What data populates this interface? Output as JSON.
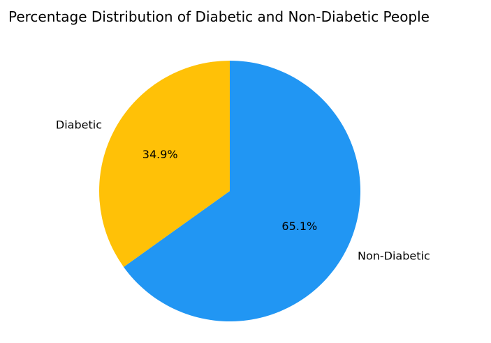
{
  "chart_data": {
    "type": "pie",
    "title": "Percentage Distribution of Diabetic and Non-Diabetic People",
    "slices": [
      {
        "label": "Non-Diabetic",
        "value": 65.1,
        "pct_label": "65.1%",
        "color": "#2196F3"
      },
      {
        "label": "Diabetic",
        "value": 34.9,
        "pct_label": "34.9%",
        "color": "#FFC107"
      }
    ],
    "start_angle_deg": 90,
    "direction": "clockwise"
  }
}
